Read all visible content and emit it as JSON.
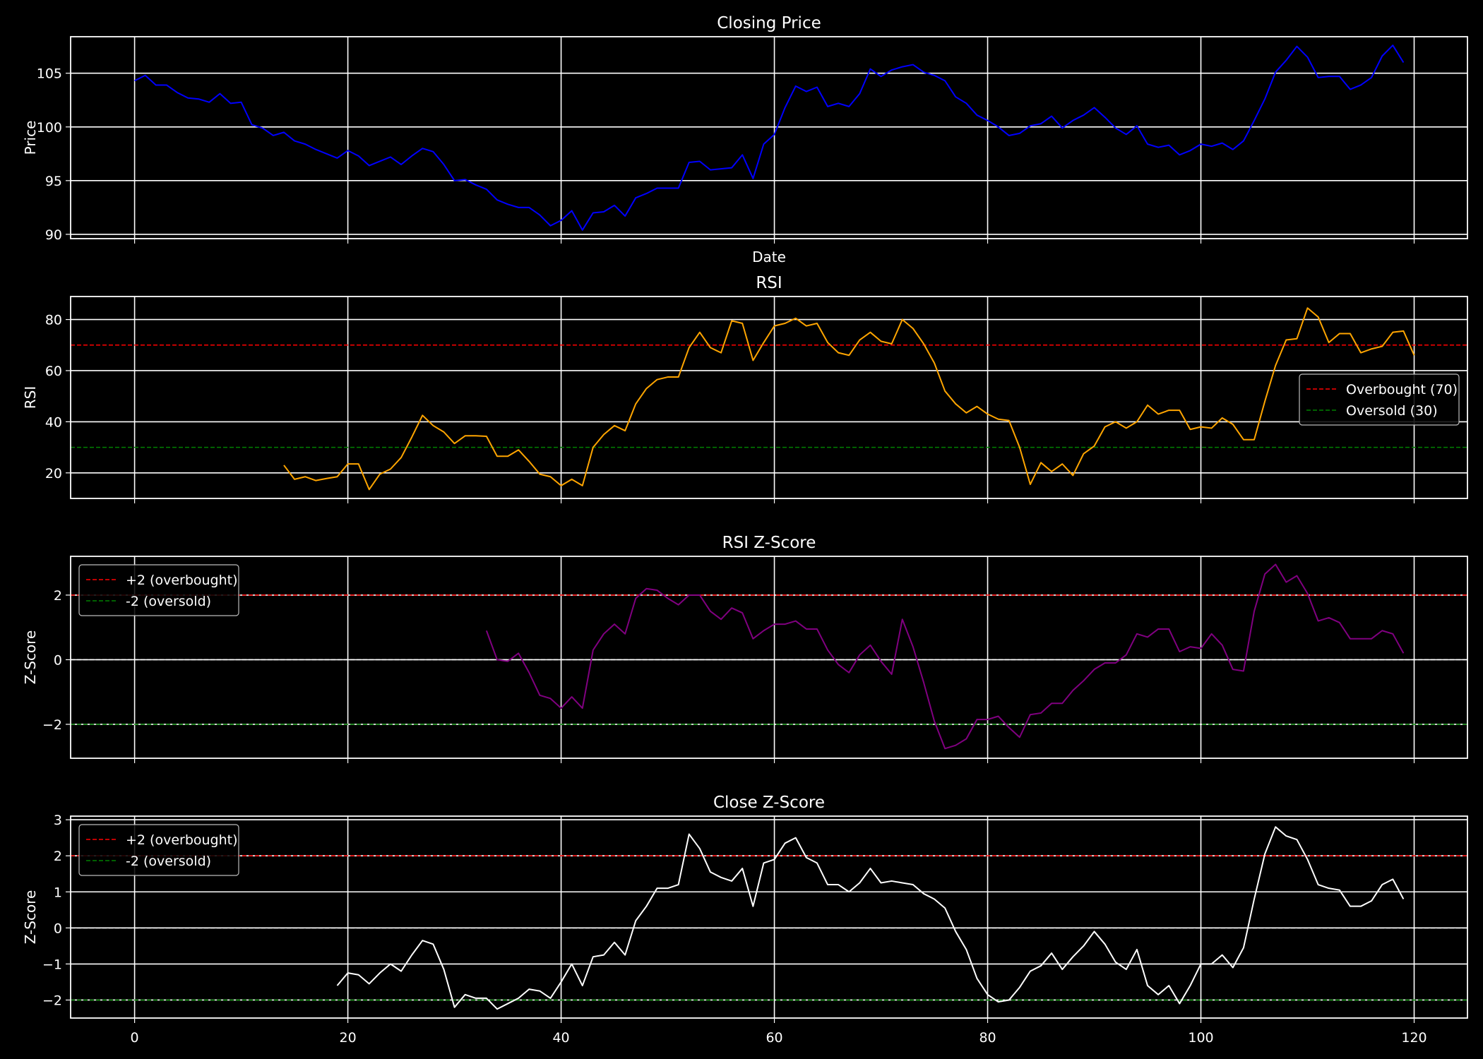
{
  "colors": {
    "background": "#000000",
    "grid": "#ffffff",
    "price": "#0000ff",
    "rsi": "#ffa500",
    "rsi_z": "#800080",
    "close_z": "#ffffff",
    "overbought": "#ff0000",
    "oversold": "#008000",
    "zero": "#ffffff"
  },
  "chart_data": [
    {
      "type": "line",
      "title": "Closing Price",
      "xlabel": "Date",
      "ylabel": "Price",
      "xlim": [
        -6,
        125
      ],
      "ylim": [
        89.6,
        108.4
      ],
      "yticks": [
        90,
        95,
        100,
        105
      ],
      "grid": true,
      "series": [
        {
          "start": 0,
          "values": [
            104.3,
            104.8,
            103.9,
            103.9,
            103.2,
            102.7,
            102.6,
            102.3,
            103.1,
            102.2,
            102.3,
            100.2,
            99.9,
            99.2,
            99.5,
            98.7,
            98.4,
            97.9,
            97.5,
            97.1,
            97.8,
            97.3,
            96.4,
            96.8,
            97.2,
            96.5,
            97.3,
            98.0,
            97.7,
            96.5,
            95.0,
            95.1,
            94.6,
            94.2,
            93.2,
            92.8,
            92.5,
            92.5,
            91.8,
            90.8,
            91.3,
            92.2,
            90.4,
            92.0,
            92.1,
            92.7,
            91.7,
            93.4,
            93.8,
            94.3,
            94.3,
            94.3,
            96.7,
            96.8,
            96.0,
            96.1,
            96.2,
            97.4,
            95.2,
            98.4,
            99.3,
            101.8,
            103.8,
            103.3,
            103.7,
            101.9,
            102.2,
            101.9,
            103.1,
            105.4,
            104.7,
            105.3,
            105.6,
            105.8,
            105.1,
            104.8,
            104.3,
            102.8,
            102.2,
            101.1,
            100.6,
            100.0,
            99.2,
            99.4,
            100.1,
            100.3,
            101.0,
            99.9,
            100.6,
            101.1,
            101.8,
            100.9,
            99.9,
            99.3,
            100.1,
            98.4,
            98.1,
            98.3,
            97.4,
            97.8,
            98.4,
            98.2,
            98.5,
            97.9,
            98.7,
            100.6,
            102.6,
            105.1,
            106.2,
            107.5,
            106.5,
            104.6,
            104.7,
            104.7,
            103.5,
            103.9,
            104.6,
            106.6,
            107.6,
            106.0
          ]
        }
      ]
    },
    {
      "type": "line",
      "title": "RSI",
      "xlabel": "",
      "ylabel": "RSI",
      "xlim": [
        -6,
        125
      ],
      "ylim": [
        10,
        89
      ],
      "yticks": [
        20,
        40,
        60,
        80
      ],
      "grid": true,
      "legend": "center-right",
      "hlines": [
        {
          "name": "Overbought (70)",
          "y": 70,
          "color": "red"
        },
        {
          "name": "Oversold (30)",
          "y": 30,
          "color": "green"
        }
      ],
      "series": [
        {
          "start": 14,
          "values": [
            23,
            17.5,
            18.5,
            17,
            17.8,
            18.5,
            23.5,
            23.5,
            13.5,
            19.5,
            21.5,
            26,
            34,
            42.5,
            38.5,
            36,
            31.5,
            34.5,
            34.5,
            34.3,
            26.5,
            26.5,
            29,
            24.5,
            19.5,
            18.5,
            15,
            17.5,
            15,
            30,
            35,
            38.5,
            36.5,
            47,
            53,
            56.5,
            57.5,
            57.5,
            69,
            75,
            69,
            67,
            79.5,
            78.5,
            64,
            71,
            77.5,
            78.5,
            80.5,
            77.5,
            78.5,
            71,
            67,
            66,
            72,
            75,
            71.5,
            70.5,
            80,
            76.5,
            70.5,
            63,
            52,
            47,
            43.5,
            46,
            43,
            41,
            40.5,
            30,
            15.5,
            24,
            20.5,
            23.5,
            19,
            27.5,
            30.5,
            38,
            40,
            37.5,
            40,
            46.5,
            43,
            44.5,
            44.5,
            37,
            38,
            37.5,
            41.5,
            39,
            33,
            33,
            48,
            62,
            72,
            72.5,
            84.5,
            81,
            71,
            74.5,
            74.5,
            67,
            68.5,
            69.5,
            75,
            75.5,
            66
          ]
        }
      ]
    },
    {
      "type": "line",
      "title": "RSI Z-Score",
      "xlabel": "",
      "ylabel": "Z-Score",
      "xlim": [
        -6,
        125
      ],
      "ylim": [
        -3.05,
        3.2
      ],
      "yticks": [
        -2,
        0,
        2
      ],
      "grid": true,
      "legend": "upper-left",
      "hlines": [
        {
          "name": "+2 (overbought)",
          "y": 2,
          "color": "red"
        },
        {
          "name": "-2 (oversold)",
          "y": -2,
          "color": "green"
        },
        {
          "name": "",
          "y": 0,
          "color": "white"
        }
      ],
      "series": [
        {
          "start": 33,
          "values": [
            0.9,
            0,
            -0.05,
            0.2,
            -0.4,
            -1.1,
            -1.2,
            -1.5,
            -1.15,
            -1.5,
            0.3,
            0.8,
            1.1,
            0.8,
            1.9,
            2.2,
            2.15,
            1.9,
            1.7,
            2,
            2,
            1.5,
            1.25,
            1.6,
            1.45,
            0.65,
            0.9,
            1.1,
            1.1,
            1.2,
            0.95,
            0.95,
            0.3,
            -0.15,
            -0.4,
            0.15,
            0.45,
            -0.05,
            -0.45,
            1.25,
            0.4,
            -0.7,
            -1.9,
            -2.75,
            -2.65,
            -2.45,
            -1.85,
            -1.85,
            -1.75,
            -2.1,
            -2.4,
            -1.7,
            -1.65,
            -1.35,
            -1.35,
            -0.95,
            -0.65,
            -0.3,
            -0.1,
            -0.1,
            0.15,
            0.8,
            0.7,
            0.95,
            0.95,
            0.25,
            0.4,
            0.35,
            0.8,
            0.45,
            -0.3,
            -0.35,
            1.5,
            2.65,
            2.95,
            2.4,
            2.6,
            2.05,
            1.2,
            1.3,
            1.15,
            0.65,
            0.65,
            0.65,
            0.9,
            0.8,
            0.2
          ]
        }
      ]
    },
    {
      "type": "line",
      "title": "Close Z-Score",
      "xlabel": "",
      "ylabel": "Z-Score",
      "xlim": [
        -6,
        125
      ],
      "ylim": [
        -2.5,
        3.1
      ],
      "yticks": [
        -2,
        -1,
        0,
        1,
        2,
        3
      ],
      "xticks": [
        0,
        20,
        40,
        60,
        80,
        100,
        120
      ],
      "grid": true,
      "legend": "upper-left",
      "hlines": [
        {
          "name": "+2 (overbought)",
          "y": 2,
          "color": "red"
        },
        {
          "name": "-2 (oversold)",
          "y": -2,
          "color": "green"
        },
        {
          "name": "",
          "y": 0,
          "color": "white"
        }
      ],
      "series": [
        {
          "start": 19,
          "values": [
            -1.6,
            -1.25,
            -1.3,
            -1.55,
            -1.25,
            -1.0,
            -1.2,
            -0.75,
            -0.35,
            -0.45,
            -1.15,
            -2.2,
            -1.85,
            -1.95,
            -1.95,
            -2.25,
            -2.1,
            -1.95,
            -1.7,
            -1.75,
            -1.95,
            -1.5,
            -1.0,
            -1.6,
            -0.8,
            -0.75,
            -0.4,
            -0.75,
            0.2,
            0.6,
            1.1,
            1.1,
            1.2,
            2.6,
            2.2,
            1.55,
            1.4,
            1.3,
            1.65,
            0.6,
            1.8,
            1.9,
            2.35,
            2.5,
            1.95,
            1.8,
            1.2,
            1.2,
            1.0,
            1.25,
            1.65,
            1.25,
            1.3,
            1.25,
            1.2,
            0.95,
            0.8,
            0.55,
            -0.1,
            -0.6,
            -1.4,
            -1.85,
            -2.05,
            -2.0,
            -1.65,
            -1.2,
            -1.05,
            -0.7,
            -1.15,
            -0.8,
            -0.5,
            -0.1,
            -0.45,
            -0.95,
            -1.15,
            -0.6,
            -1.6,
            -1.85,
            -1.6,
            -2.1,
            -1.6,
            -1.0,
            -1.0,
            -0.75,
            -1.1,
            -0.55,
            0.8,
            2.05,
            2.8,
            2.55,
            2.45,
            1.9,
            1.2,
            1.1,
            1.05,
            0.6,
            0.6,
            0.75,
            1.2,
            1.35,
            0.8
          ]
        }
      ]
    }
  ]
}
